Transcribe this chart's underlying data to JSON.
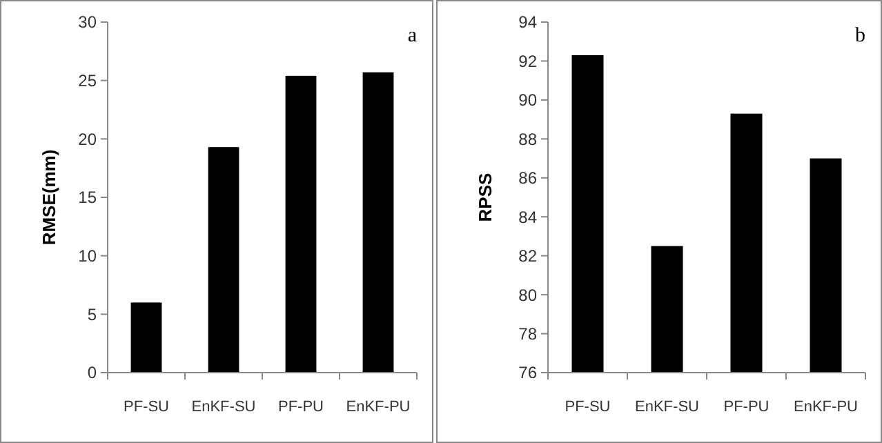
{
  "chart_data": [
    {
      "type": "bar",
      "ylabel": "RMSE(mm)",
      "annotations": [
        "a"
      ],
      "categories": [
        "PF-SU",
        "EnKF-SU",
        "PF-PU",
        "EnKF-PU"
      ],
      "values": [
        6.0,
        19.3,
        25.4,
        25.7
      ],
      "color": "#000000",
      "ylim": [
        0,
        30
      ],
      "yticks": [
        0,
        5,
        10,
        15,
        20,
        25,
        30
      ],
      "grid": false
    },
    {
      "type": "bar",
      "ylabel": "RPSS",
      "annotations": [
        "b"
      ],
      "categories": [
        "PF-SU",
        "EnKF-SU",
        "PF-PU",
        "EnKF-PU"
      ],
      "values": [
        92.3,
        82.5,
        89.3,
        87.0
      ],
      "color": "#000000",
      "ylim": [
        76,
        94
      ],
      "yticks": [
        76,
        78,
        80,
        82,
        84,
        86,
        88,
        90,
        92,
        94
      ],
      "grid": false
    }
  ]
}
